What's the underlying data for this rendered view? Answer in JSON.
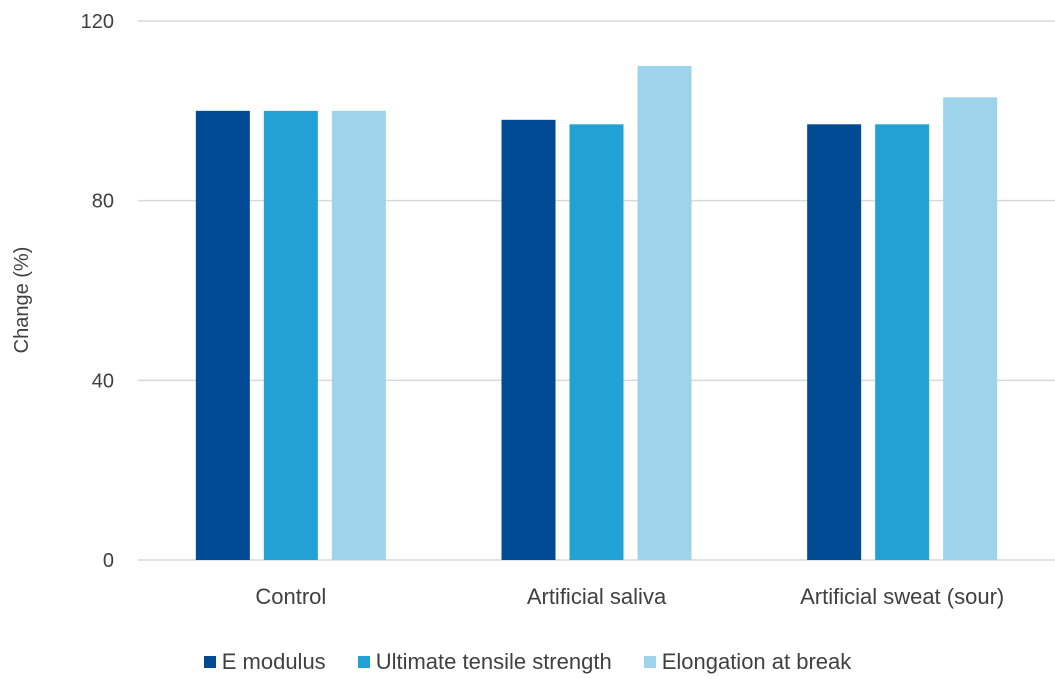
{
  "chart_data": {
    "type": "bar",
    "categories": [
      "Control",
      "Artificial saliva",
      "Artificial sweat (sour)"
    ],
    "series": [
      {
        "name": "E modulus",
        "values": [
          100,
          98,
          97
        ],
        "color": "#004B93"
      },
      {
        "name": "Ultimate tensile strength",
        "values": [
          100,
          97,
          97
        ],
        "color": "#22A1D4"
      },
      {
        "name": "Elongation at break",
        "values": [
          100,
          110,
          103
        ],
        "color": "#9DD4EB"
      }
    ],
    "title": "",
    "xlabel": "",
    "ylabel": "Change (%)",
    "ylim": [
      0,
      120
    ],
    "yticks": [
      0,
      40,
      80,
      120
    ],
    "grid": true,
    "legend_position": "bottom"
  }
}
